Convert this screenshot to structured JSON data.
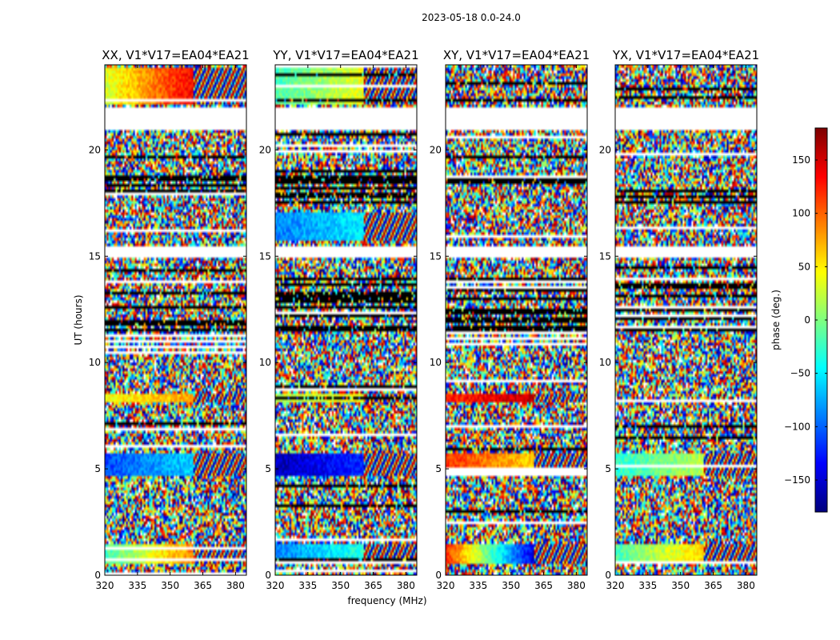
{
  "chart_data": {
    "type": "heatmap",
    "title": "2023-05-18 0.0-24.0",
    "xlabel": "frequency (MHz)",
    "ylabel": "UT (hours)",
    "xlim": [
      320,
      385
    ],
    "ylim": [
      0,
      24
    ],
    "x_ticks": [
      "320",
      "335",
      "350",
      "365",
      "380"
    ],
    "y_ticks": [
      "0",
      "5",
      "10",
      "15",
      "20"
    ],
    "colorbar": {
      "label": "phase (deg.)",
      "range": [
        -180,
        180
      ],
      "ticks": [
        "150",
        "100",
        "50",
        "0",
        "−50",
        "−100",
        "−150"
      ],
      "tick_values": [
        150,
        100,
        50,
        0,
        -50,
        -100,
        -150
      ],
      "colormap": "jet"
    },
    "panels": [
      {
        "title": "XX, V1*V17=EA04*EA21",
        "coherent_bands": [
          [
            0.6,
            1.5,
            -20,
            90
          ],
          [
            4.7,
            5.7,
            -110,
            -60
          ],
          [
            8.2,
            8.5,
            40,
            80
          ],
          [
            22.2,
            23.8,
            30,
            140
          ]
        ]
      },
      {
        "title": "YY, V1*V17=EA04*EA21",
        "coherent_bands": [
          [
            0.6,
            1.5,
            -90,
            -30
          ],
          [
            4.7,
            5.7,
            -160,
            -120
          ],
          [
            8.2,
            8.5,
            20,
            40
          ],
          [
            15.8,
            17.0,
            -90,
            -50
          ],
          [
            22.2,
            23.8,
            -20,
            40
          ]
        ]
      },
      {
        "title": "XY, V1*V17=EA04*EA21",
        "coherent_bands": [
          [
            0.6,
            1.5,
            120,
            -150
          ],
          [
            4.7,
            5.7,
            120,
            60
          ],
          [
            8.2,
            8.5,
            120,
            160
          ]
        ]
      },
      {
        "title": "YX, V1*V17=EA04*EA21",
        "coherent_bands": [
          [
            0.6,
            1.5,
            -20,
            60
          ],
          [
            4.7,
            5.7,
            -30,
            20
          ]
        ]
      }
    ],
    "gaps_hours": [
      [
        21.0,
        22.0
      ],
      [
        14.9,
        15.5
      ]
    ],
    "dense_blocks_hours": [
      [
        17.3,
        19.1
      ],
      [
        11.5,
        14.0
      ]
    ]
  }
}
